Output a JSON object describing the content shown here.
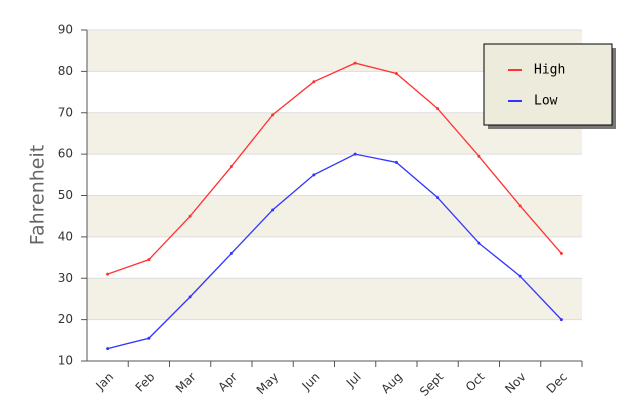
{
  "chart_data": {
    "type": "line",
    "y_label": "Fahrenheit",
    "categories": [
      "Jan",
      "Feb",
      "Mar",
      "Apr",
      "May",
      "Jun",
      "Jul",
      "Aug",
      "Sept",
      "Oct",
      "Nov",
      "Dec"
    ],
    "series": [
      {
        "name": "High",
        "color": "#ff3333",
        "values": [
          31,
          34.5,
          45,
          57,
          69.5,
          77.5,
          82,
          79.5,
          71,
          59.5,
          47.5,
          36
        ]
      },
      {
        "name": "Low",
        "color": "#3333ff",
        "values": [
          13,
          15.5,
          25.5,
          36,
          46.5,
          55,
          60,
          58,
          49.5,
          38.5,
          30.5,
          20
        ]
      }
    ],
    "ylim": [
      10,
      90
    ],
    "yticks": [
      10,
      20,
      30,
      40,
      50,
      60,
      70,
      80,
      90
    ],
    "grid": true,
    "legend": "top-right"
  }
}
